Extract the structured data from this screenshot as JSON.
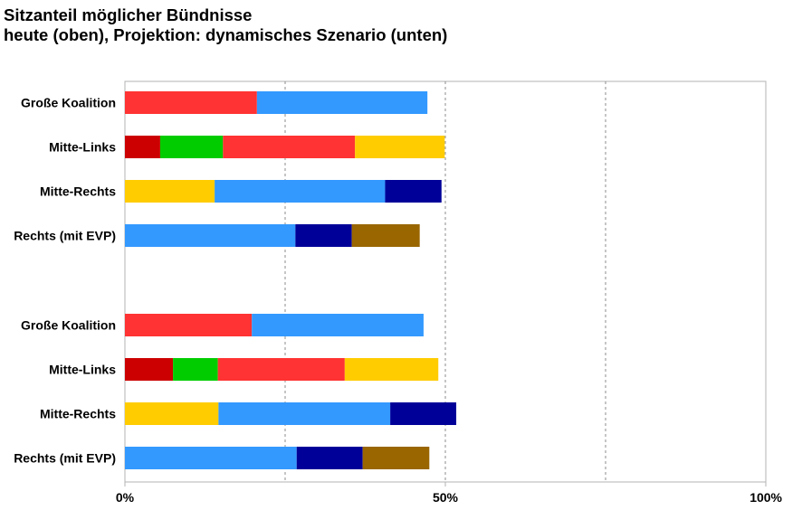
{
  "chart_data": {
    "type": "bar",
    "orientation": "horizontal",
    "stacked": true,
    "title": "Sitzanteil möglicher Bündnisse",
    "subtitle": "heute (oben), Projektion: dynamisches Szenario (unten)",
    "xlim": [
      0,
      100
    ],
    "xticks": [
      {
        "value": 0,
        "label": "0%"
      },
      {
        "value": 50,
        "label": "50%"
      },
      {
        "value": 100,
        "label": "100%"
      }
    ],
    "gridlines": [
      25,
      50,
      75
    ],
    "legend": "none",
    "groups": [
      {
        "rows": [
          {
            "label": "Große Koalition",
            "segments": [
              {
                "value": 20.6,
                "color": "#ff3333"
              },
              {
                "value": 26.6,
                "color": "#3399ff"
              }
            ]
          },
          {
            "label": "Mitte-Links",
            "segments": [
              {
                "value": 5.5,
                "color": "#cc0000"
              },
              {
                "value": 9.8,
                "color": "#00cc00"
              },
              {
                "value": 20.6,
                "color": "#ff3333"
              },
              {
                "value": 14.0,
                "color": "#ffcc00"
              }
            ]
          },
          {
            "label": "Mitte-Rechts",
            "segments": [
              {
                "value": 14.0,
                "color": "#ffcc00"
              },
              {
                "value": 26.6,
                "color": "#3399ff"
              },
              {
                "value": 8.8,
                "color": "#000099"
              }
            ]
          },
          {
            "label": "Rechts (mit EVP)",
            "segments": [
              {
                "value": 26.6,
                "color": "#3399ff"
              },
              {
                "value": 8.8,
                "color": "#000099"
              },
              {
                "value": 10.6,
                "color": "#996600"
              }
            ]
          }
        ]
      },
      {
        "rows": [
          {
            "label": "Große Koalition",
            "segments": [
              {
                "value": 19.8,
                "color": "#ff3333"
              },
              {
                "value": 26.8,
                "color": "#3399ff"
              }
            ]
          },
          {
            "label": "Mitte-Links",
            "segments": [
              {
                "value": 7.5,
                "color": "#cc0000"
              },
              {
                "value": 7.0,
                "color": "#00cc00"
              },
              {
                "value": 19.8,
                "color": "#ff3333"
              },
              {
                "value": 14.6,
                "color": "#ffcc00"
              }
            ]
          },
          {
            "label": "Mitte-Rechts",
            "segments": [
              {
                "value": 14.6,
                "color": "#ffcc00"
              },
              {
                "value": 26.8,
                "color": "#3399ff"
              },
              {
                "value": 10.3,
                "color": "#000099"
              }
            ]
          },
          {
            "label": "Rechts (mit EVP)",
            "segments": [
              {
                "value": 26.8,
                "color": "#3399ff"
              },
              {
                "value": 10.3,
                "color": "#000099"
              },
              {
                "value": 10.4,
                "color": "#996600"
              }
            ]
          }
        ]
      }
    ]
  }
}
